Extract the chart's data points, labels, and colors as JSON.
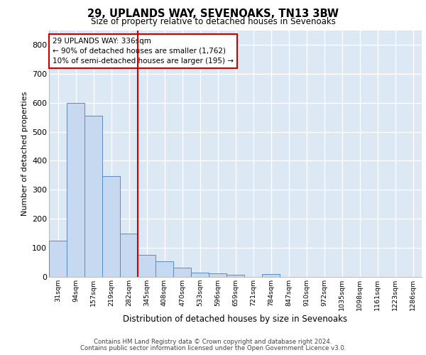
{
  "title_line1": "29, UPLANDS WAY, SEVENOAKS, TN13 3BW",
  "title_line2": "Size of property relative to detached houses in Sevenoaks",
  "xlabel": "Distribution of detached houses by size in Sevenoaks",
  "ylabel": "Number of detached properties",
  "footer_line1": "Contains HM Land Registry data © Crown copyright and database right 2024.",
  "footer_line2": "Contains public sector information licensed under the Open Government Licence v3.0.",
  "annotation_line1": "29 UPLANDS WAY: 336sqm",
  "annotation_line2": "← 90% of detached houses are smaller (1,762)",
  "annotation_line3": "10% of semi-detached houses are larger (195) →",
  "categories": [
    "31sqm",
    "94sqm",
    "157sqm",
    "219sqm",
    "282sqm",
    "345sqm",
    "408sqm",
    "470sqm",
    "533sqm",
    "596sqm",
    "659sqm",
    "721sqm",
    "784sqm",
    "847sqm",
    "910sqm",
    "972sqm",
    "1035sqm",
    "1098sqm",
    "1161sqm",
    "1223sqm",
    "1286sqm"
  ],
  "bar_heights": [
    125,
    600,
    555,
    348,
    150,
    77,
    55,
    32,
    15,
    13,
    8,
    0,
    10,
    0,
    0,
    0,
    0,
    0,
    0,
    0,
    0
  ],
  "bar_color": "#c6d9f1",
  "bar_edge_color": "#5a8ac6",
  "red_line_index": 5,
  "red_line_color": "#cc0000",
  "ylim": [
    0,
    850
  ],
  "yticks": [
    0,
    100,
    200,
    300,
    400,
    500,
    600,
    700,
    800
  ],
  "annotation_box_color": "#cc0000",
  "background_color": "#dde8f5",
  "grid_color": "#ffffff",
  "fig_bg": "#ffffff"
}
